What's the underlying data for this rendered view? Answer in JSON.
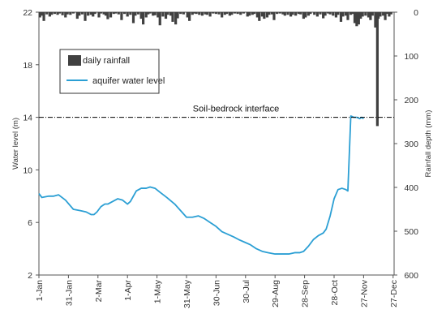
{
  "chart_data": {
    "type": "bar+line",
    "title": "",
    "xlabel": "",
    "ylabel_left": "Water level (m)",
    "ylabel_right": "Rainfall depth (mm)",
    "ylim_left": [
      2,
      22
    ],
    "yticks_left": [
      "2",
      "6",
      "10",
      "14",
      "18",
      "22"
    ],
    "ylim_right": [
      0,
      600
    ],
    "right_axis_inverted": true,
    "yticks_right": [
      "0",
      "100",
      "200",
      "300",
      "400",
      "500",
      "600"
    ],
    "xlim_day": [
      0,
      361
    ],
    "x_ticks": [
      {
        "day": 0,
        "label": "1-Jan"
      },
      {
        "day": 30,
        "label": "31-Jan"
      },
      {
        "day": 60,
        "label": "2-Mar"
      },
      {
        "day": 90,
        "label": "1-Apr"
      },
      {
        "day": 120,
        "label": "1-May"
      },
      {
        "day": 150,
        "label": "31-May"
      },
      {
        "day": 180,
        "label": "30-Jun"
      },
      {
        "day": 210,
        "label": "30-Jul"
      },
      {
        "day": 240,
        "label": "29-Aug"
      },
      {
        "day": 270,
        "label": "28-Sep"
      },
      {
        "day": 300,
        "label": "28-Oct"
      },
      {
        "day": 330,
        "label": "27-Nov"
      },
      {
        "day": 360,
        "label": "27-Dec"
      }
    ],
    "grid": false,
    "legend_position": "top-left",
    "annotation": {
      "text": "Soil-bedrock interface",
      "y": 14
    },
    "colors": {
      "rainfall": "#404040",
      "water_level": "#2b9fd4",
      "interface_line": "#000000"
    },
    "series": [
      {
        "name": "daily rainfall",
        "type": "bar",
        "axis": "right",
        "points": [
          [
            1,
            12
          ],
          [
            3,
            8
          ],
          [
            5,
            20
          ],
          [
            8,
            5
          ],
          [
            11,
            10
          ],
          [
            13,
            6
          ],
          [
            16,
            4
          ],
          [
            19,
            6
          ],
          [
            21,
            3
          ],
          [
            24,
            7
          ],
          [
            27,
            12
          ],
          [
            29,
            5
          ],
          [
            32,
            6
          ],
          [
            35,
            3
          ],
          [
            39,
            15
          ],
          [
            41,
            8
          ],
          [
            44,
            5
          ],
          [
            47,
            20
          ],
          [
            50,
            8
          ],
          [
            53,
            6
          ],
          [
            55,
            10
          ],
          [
            57,
            4
          ],
          [
            61,
            12
          ],
          [
            63,
            3
          ],
          [
            66,
            5
          ],
          [
            68,
            8
          ],
          [
            70,
            16
          ],
          [
            73,
            12
          ],
          [
            76,
            4
          ],
          [
            78,
            3
          ],
          [
            81,
            5
          ],
          [
            84,
            18
          ],
          [
            87,
            4
          ],
          [
            90,
            10
          ],
          [
            93,
            6
          ],
          [
            96,
            25
          ],
          [
            98,
            8
          ],
          [
            101,
            5
          ],
          [
            104,
            15
          ],
          [
            106,
            28
          ],
          [
            109,
            12
          ],
          [
            111,
            5
          ],
          [
            113,
            3
          ],
          [
            116,
            8
          ],
          [
            118,
            7
          ],
          [
            121,
            12
          ],
          [
            123,
            30
          ],
          [
            126,
            10
          ],
          [
            129,
            15
          ],
          [
            131,
            6
          ],
          [
            134,
            8
          ],
          [
            136,
            22
          ],
          [
            139,
            28
          ],
          [
            141,
            14
          ],
          [
            144,
            4
          ],
          [
            147,
            5
          ],
          [
            151,
            12
          ],
          [
            153,
            20
          ],
          [
            156,
            6
          ],
          [
            158,
            3
          ],
          [
            160,
            4
          ],
          [
            163,
            6
          ],
          [
            166,
            8
          ],
          [
            169,
            5
          ],
          [
            171,
            6
          ],
          [
            174,
            10
          ],
          [
            177,
            3
          ],
          [
            180,
            4
          ],
          [
            183,
            5
          ],
          [
            186,
            12
          ],
          [
            189,
            6
          ],
          [
            191,
            4
          ],
          [
            194,
            8
          ],
          [
            196,
            6
          ],
          [
            199,
            3
          ],
          [
            202,
            4
          ],
          [
            205,
            6
          ],
          [
            208,
            3
          ],
          [
            212,
            10
          ],
          [
            214,
            8
          ],
          [
            217,
            6
          ],
          [
            219,
            4
          ],
          [
            222,
            12
          ],
          [
            224,
            20
          ],
          [
            227,
            10
          ],
          [
            229,
            15
          ],
          [
            232,
            12
          ],
          [
            234,
            6
          ],
          [
            237,
            5
          ],
          [
            239,
            18
          ],
          [
            242,
            4
          ],
          [
            245,
            3
          ],
          [
            248,
            5
          ],
          [
            250,
            8
          ],
          [
            253,
            6
          ],
          [
            256,
            10
          ],
          [
            258,
            6
          ],
          [
            261,
            8
          ],
          [
            264,
            4
          ],
          [
            266,
            5
          ],
          [
            269,
            15
          ],
          [
            271,
            12
          ],
          [
            274,
            8
          ],
          [
            276,
            4
          ],
          [
            280,
            6
          ],
          [
            283,
            10
          ],
          [
            286,
            5
          ],
          [
            289,
            14
          ],
          [
            291,
            8
          ],
          [
            294,
            3
          ],
          [
            296,
            5
          ],
          [
            299,
            8
          ],
          [
            302,
            12
          ],
          [
            304,
            6
          ],
          [
            307,
            22
          ],
          [
            309,
            10
          ],
          [
            312,
            8
          ],
          [
            314,
            18
          ],
          [
            317,
            6
          ],
          [
            319,
            4
          ],
          [
            321,
            25
          ],
          [
            323,
            32
          ],
          [
            325,
            28
          ],
          [
            327,
            15
          ],
          [
            329,
            10
          ],
          [
            332,
            8
          ],
          [
            335,
            12
          ],
          [
            337,
            18
          ],
          [
            339,
            8
          ],
          [
            342,
            35
          ],
          [
            344,
            260
          ],
          [
            345,
            15
          ],
          [
            347,
            10
          ],
          [
            350,
            8
          ],
          [
            352,
            18
          ],
          [
            354,
            4
          ],
          [
            356,
            10
          ],
          [
            358,
            5
          ]
        ]
      },
      {
        "name": "aquifer water level",
        "type": "line",
        "axis": "left",
        "points": [
          [
            0,
            8.2
          ],
          [
            3,
            7.9
          ],
          [
            10,
            8.0
          ],
          [
            15,
            8.0
          ],
          [
            20,
            8.1
          ],
          [
            27,
            7.7
          ],
          [
            35,
            7.0
          ],
          [
            42,
            6.9
          ],
          [
            48,
            6.8
          ],
          [
            53,
            6.6
          ],
          [
            56,
            6.6
          ],
          [
            59,
            6.8
          ],
          [
            63,
            7.2
          ],
          [
            67,
            7.4
          ],
          [
            70,
            7.4
          ],
          [
            75,
            7.6
          ],
          [
            80,
            7.8
          ],
          [
            85,
            7.7
          ],
          [
            90,
            7.4
          ],
          [
            93,
            7.6
          ],
          [
            99,
            8.4
          ],
          [
            104,
            8.6
          ],
          [
            109,
            8.6
          ],
          [
            113,
            8.7
          ],
          [
            118,
            8.6
          ],
          [
            123,
            8.3
          ],
          [
            130,
            7.9
          ],
          [
            138,
            7.4
          ],
          [
            144,
            6.9
          ],
          [
            150,
            6.4
          ],
          [
            156,
            6.4
          ],
          [
            162,
            6.5
          ],
          [
            168,
            6.3
          ],
          [
            174,
            6.0
          ],
          [
            180,
            5.7
          ],
          [
            186,
            5.3
          ],
          [
            192,
            5.1
          ],
          [
            198,
            4.9
          ],
          [
            203,
            4.7
          ],
          [
            209,
            4.5
          ],
          [
            215,
            4.3
          ],
          [
            221,
            4.0
          ],
          [
            227,
            3.8
          ],
          [
            233,
            3.7
          ],
          [
            240,
            3.6
          ],
          [
            247,
            3.6
          ],
          [
            254,
            3.6
          ],
          [
            260,
            3.7
          ],
          [
            265,
            3.7
          ],
          [
            269,
            3.8
          ],
          [
            274,
            4.2
          ],
          [
            279,
            4.7
          ],
          [
            284,
            5.0
          ],
          [
            289,
            5.2
          ],
          [
            292,
            5.5
          ],
          [
            296,
            6.5
          ],
          [
            300,
            7.8
          ],
          [
            304,
            8.5
          ],
          [
            308,
            8.6
          ],
          [
            312,
            8.5
          ],
          [
            314,
            8.4
          ],
          [
            317,
            14.1
          ],
          [
            320,
            14.0
          ],
          [
            323,
            14.0
          ],
          [
            326,
            13.9
          ],
          [
            328,
            14.0
          ],
          [
            330,
            13.9
          ]
        ]
      }
    ]
  }
}
